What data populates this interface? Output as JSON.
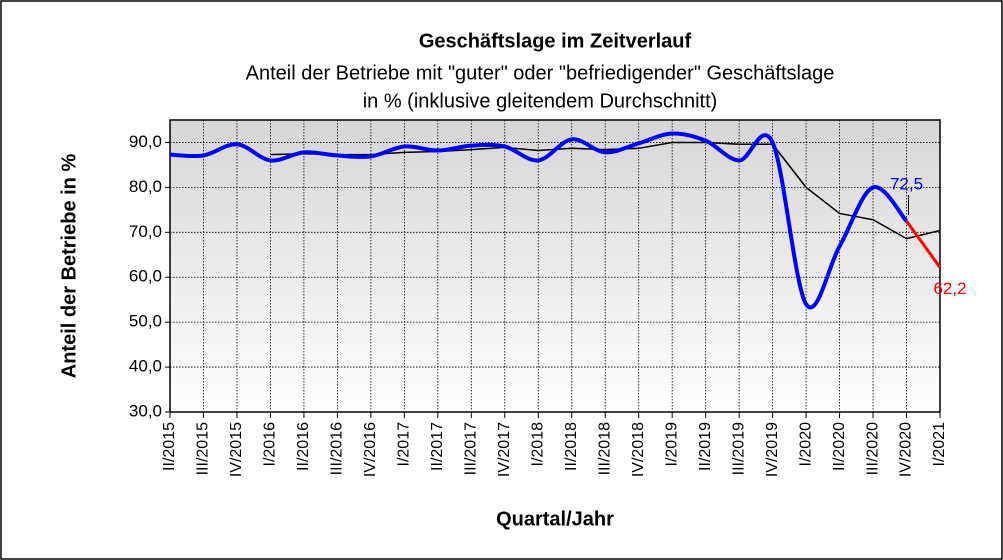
{
  "chart_data": {
    "type": "line",
    "title": "Geschäftslage im Zeitverlauf",
    "subtitle": [
      "Anteil der Betriebe mit \"guter\" oder \"befriedigender\" Geschäftslage",
      "in % (inklusive  gleitendem Durchschnitt)"
    ],
    "x_label": "Quartal/Jahr",
    "y_label": "Anteil der Betriebe in %",
    "categories": [
      "II/2015",
      "III/2015",
      "IV/2015",
      "I/2016",
      "II/2016",
      "III/2016",
      "IV/2016",
      "I/2017",
      "II/2017",
      "III/2017",
      "IV/2017",
      "I/2018",
      "II/2018",
      "III/2018",
      "IV/2018",
      "I/2019",
      "II/2019",
      "III/2019",
      "IV/2019",
      "I/2020",
      "II/2020",
      "III/2020",
      "IV/2020",
      "I/2021"
    ],
    "series": [
      {
        "color": "#0000ff",
        "smooth": true,
        "width": 4,
        "values": [
          87.3,
          87.1,
          89.6,
          86.0,
          87.8,
          87.1,
          86.9,
          89.1,
          88.2,
          89.3,
          89.1,
          86.0,
          90.7,
          87.8,
          89.8,
          92.0,
          90.4,
          86.0,
          90.0,
          54.0,
          66.9,
          80.0,
          72.5,
          null
        ],
        "value_labels": [
          null,
          null,
          null,
          null,
          null,
          null,
          null,
          null,
          null,
          null,
          null,
          null,
          null,
          null,
          null,
          null,
          null,
          null,
          null,
          null,
          null,
          null,
          "72,5",
          null
        ]
      },
      {
        "color": "#ff0000",
        "smooth": false,
        "width": 3,
        "values": [
          null,
          null,
          null,
          null,
          null,
          null,
          null,
          null,
          null,
          null,
          null,
          null,
          null,
          null,
          null,
          null,
          null,
          null,
          null,
          null,
          null,
          null,
          72.5,
          62.2
        ],
        "value_labels": [
          null,
          null,
          null,
          null,
          null,
          null,
          null,
          null,
          null,
          null,
          null,
          null,
          null,
          null,
          null,
          null,
          null,
          null,
          null,
          null,
          null,
          null,
          null,
          "62,2"
        ]
      },
      {
        "color": "#000000",
        "smooth": false,
        "width": 1.5,
        "values": [
          null,
          null,
          null,
          87.3,
          87.5,
          87.3,
          87.3,
          87.8,
          88.0,
          88.4,
          88.9,
          88.2,
          88.7,
          88.4,
          88.7,
          90.0,
          90.0,
          89.6,
          89.6,
          80.0,
          74.2,
          72.8,
          68.6,
          70.4
        ]
      }
    ],
    "ylim": [
      30,
      95
    ],
    "yticks": [
      {
        "value": 30,
        "label": "30,0"
      },
      {
        "value": 40,
        "label": "40,0"
      },
      {
        "value": 50,
        "label": "50,0"
      },
      {
        "value": 60,
        "label": "60,0"
      },
      {
        "value": 70,
        "label": "70,0"
      },
      {
        "value": 80,
        "label": "80,0"
      },
      {
        "value": 90,
        "label": "90,0"
      }
    ],
    "grid": true
  }
}
